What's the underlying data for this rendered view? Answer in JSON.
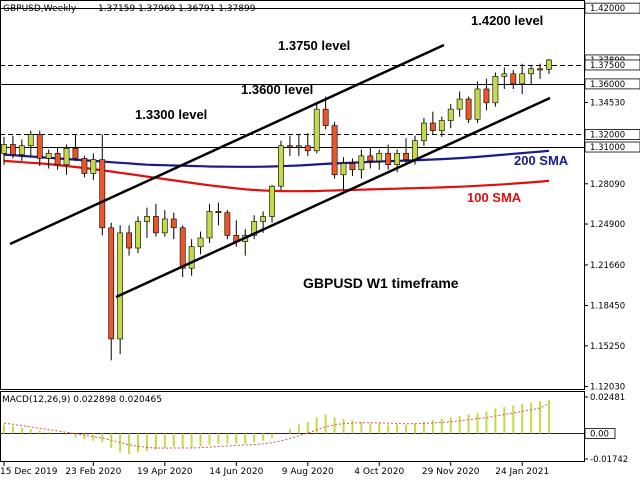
{
  "header": {
    "symbol": "GBPUSD,Weekly",
    "ohlc": "1.37159 1.37969 1.36791 1.37899",
    "macd_label": "MACD(12,26,9) 0.022898 0.020465"
  },
  "labels": {
    "level_1420": "1.4200 level",
    "level_1375": "1.3750 level",
    "level_1360": "1.3600 level",
    "level_1330": "1.3300 level",
    "sma200": "200 SMA",
    "sma100": "100 SMA",
    "timeframe": "GBPUSD W1 timeframe"
  },
  "colors": {
    "bull": "#c6d94a",
    "bear": "#e8562a",
    "sma200": "#1a1a8c",
    "sma100": "#e01010",
    "macd_hist": "#c6d94a",
    "macd_signal": "#e05050"
  },
  "chart_data": {
    "type": "candlestick",
    "timeframe": "W1",
    "ylim": [
      1.1215,
      1.4225
    ],
    "y_ticks": [
      "1.42000",
      "1.37899",
      "1.37500",
      "1.36000",
      "1.34530",
      "1.32000",
      "1.31000",
      "1.28090",
      "1.24900",
      "1.21660",
      "1.18450",
      "1.15250",
      "1.12030"
    ],
    "x_ticks": [
      "15 Dec 2019",
      "23 Feb 2020",
      "19 Apr 2020",
      "14 Jun 2020",
      "9 Aug 2020",
      "4 Oct 2020",
      "29 Nov 2020",
      "24 Jan 2021"
    ],
    "hlines": [
      {
        "value": 1.42,
        "style": "solid"
      },
      {
        "value": 1.375,
        "style": "dashed"
      },
      {
        "value": 1.36,
        "style": "solid"
      },
      {
        "value": 1.32,
        "style": "dashed"
      },
      {
        "value": 1.31,
        "style": "solid"
      }
    ],
    "candles": [
      {
        "o": 1.305,
        "h": 1.318,
        "l": 1.296,
        "c": 1.312
      },
      {
        "o": 1.312,
        "h": 1.319,
        "l": 1.301,
        "c": 1.304
      },
      {
        "o": 1.304,
        "h": 1.316,
        "l": 1.299,
        "c": 1.311
      },
      {
        "o": 1.311,
        "h": 1.323,
        "l": 1.303,
        "c": 1.32
      },
      {
        "o": 1.32,
        "h": 1.323,
        "l": 1.295,
        "c": 1.301
      },
      {
        "o": 1.301,
        "h": 1.308,
        "l": 1.293,
        "c": 1.305
      },
      {
        "o": 1.305,
        "h": 1.31,
        "l": 1.292,
        "c": 1.296
      },
      {
        "o": 1.296,
        "h": 1.312,
        "l": 1.288,
        "c": 1.309
      },
      {
        "o": 1.309,
        "h": 1.32,
        "l": 1.299,
        "c": 1.301
      },
      {
        "o": 1.301,
        "h": 1.303,
        "l": 1.286,
        "c": 1.289
      },
      {
        "o": 1.289,
        "h": 1.305,
        "l": 1.284,
        "c": 1.3
      },
      {
        "o": 1.3,
        "h": 1.32,
        "l": 1.24,
        "c": 1.246
      },
      {
        "o": 1.246,
        "h": 1.25,
        "l": 1.141,
        "c": 1.158
      },
      {
        "o": 1.158,
        "h": 1.248,
        "l": 1.146,
        "c": 1.242
      },
      {
        "o": 1.242,
        "h": 1.248,
        "l": 1.224,
        "c": 1.23
      },
      {
        "o": 1.23,
        "h": 1.255,
        "l": 1.226,
        "c": 1.251
      },
      {
        "o": 1.251,
        "h": 1.262,
        "l": 1.238,
        "c": 1.255
      },
      {
        "o": 1.255,
        "h": 1.265,
        "l": 1.239,
        "c": 1.242
      },
      {
        "o": 1.242,
        "h": 1.26,
        "l": 1.239,
        "c": 1.253
      },
      {
        "o": 1.253,
        "h": 1.258,
        "l": 1.237,
        "c": 1.246
      },
      {
        "o": 1.246,
        "h": 1.248,
        "l": 1.207,
        "c": 1.214
      },
      {
        "o": 1.214,
        "h": 1.237,
        "l": 1.208,
        "c": 1.231
      },
      {
        "o": 1.231,
        "h": 1.243,
        "l": 1.225,
        "c": 1.238
      },
      {
        "o": 1.238,
        "h": 1.265,
        "l": 1.234,
        "c": 1.259
      },
      {
        "o": 1.259,
        "h": 1.266,
        "l": 1.248,
        "c": 1.258
      },
      {
        "o": 1.258,
        "h": 1.26,
        "l": 1.237,
        "c": 1.24
      },
      {
        "o": 1.24,
        "h": 1.252,
        "l": 1.231,
        "c": 1.235
      },
      {
        "o": 1.235,
        "h": 1.245,
        "l": 1.224,
        "c": 1.24
      },
      {
        "o": 1.24,
        "h": 1.256,
        "l": 1.237,
        "c": 1.251
      },
      {
        "o": 1.251,
        "h": 1.259,
        "l": 1.242,
        "c": 1.255
      },
      {
        "o": 1.255,
        "h": 1.28,
        "l": 1.25,
        "c": 1.279
      },
      {
        "o": 1.279,
        "h": 1.315,
        "l": 1.276,
        "c": 1.311
      },
      {
        "o": 1.311,
        "h": 1.319,
        "l": 1.303,
        "c": 1.31
      },
      {
        "o": 1.31,
        "h": 1.32,
        "l": 1.303,
        "c": 1.311
      },
      {
        "o": 1.311,
        "h": 1.321,
        "l": 1.303,
        "c": 1.307
      },
      {
        "o": 1.307,
        "h": 1.345,
        "l": 1.305,
        "c": 1.34
      },
      {
        "o": 1.34,
        "h": 1.35,
        "l": 1.324,
        "c": 1.327
      },
      {
        "o": 1.327,
        "h": 1.33,
        "l": 1.285,
        "c": 1.288
      },
      {
        "o": 1.288,
        "h": 1.302,
        "l": 1.276,
        "c": 1.297
      },
      {
        "o": 1.297,
        "h": 1.301,
        "l": 1.287,
        "c": 1.292
      },
      {
        "o": 1.292,
        "h": 1.308,
        "l": 1.285,
        "c": 1.303
      },
      {
        "o": 1.303,
        "h": 1.31,
        "l": 1.293,
        "c": 1.299
      },
      {
        "o": 1.299,
        "h": 1.308,
        "l": 1.292,
        "c": 1.305
      },
      {
        "o": 1.305,
        "h": 1.312,
        "l": 1.292,
        "c": 1.296
      },
      {
        "o": 1.296,
        "h": 1.308,
        "l": 1.29,
        "c": 1.305
      },
      {
        "o": 1.305,
        "h": 1.317,
        "l": 1.296,
        "c": 1.3
      },
      {
        "o": 1.3,
        "h": 1.319,
        "l": 1.296,
        "c": 1.315
      },
      {
        "o": 1.315,
        "h": 1.333,
        "l": 1.311,
        "c": 1.329
      },
      {
        "o": 1.329,
        "h": 1.338,
        "l": 1.32,
        "c": 1.323
      },
      {
        "o": 1.323,
        "h": 1.334,
        "l": 1.318,
        "c": 1.331
      },
      {
        "o": 1.331,
        "h": 1.344,
        "l": 1.325,
        "c": 1.34
      },
      {
        "o": 1.34,
        "h": 1.354,
        "l": 1.334,
        "c": 1.348
      },
      {
        "o": 1.348,
        "h": 1.35,
        "l": 1.329,
        "c": 1.332
      },
      {
        "o": 1.332,
        "h": 1.362,
        "l": 1.329,
        "c": 1.356
      },
      {
        "o": 1.356,
        "h": 1.364,
        "l": 1.339,
        "c": 1.345
      },
      {
        "o": 1.345,
        "h": 1.369,
        "l": 1.342,
        "c": 1.366
      },
      {
        "o": 1.366,
        "h": 1.373,
        "l": 1.356,
        "c": 1.368
      },
      {
        "o": 1.368,
        "h": 1.371,
        "l": 1.356,
        "c": 1.36
      },
      {
        "o": 1.36,
        "h": 1.376,
        "l": 1.352,
        "c": 1.368
      },
      {
        "o": 1.368,
        "h": 1.374,
        "l": 1.36,
        "c": 1.372
      },
      {
        "o": 1.372,
        "h": 1.376,
        "l": 1.364,
        "c": 1.371
      },
      {
        "o": 1.3716,
        "h": 1.3797,
        "l": 1.3679,
        "c": 1.379
      }
    ],
    "sma200": [
      1.304,
      1.3035,
      1.303,
      1.3025,
      1.302,
      1.3015,
      1.301,
      1.3005,
      1.3,
      1.2995,
      1.299,
      1.2985,
      1.298,
      1.2975,
      1.297,
      1.2965,
      1.296,
      1.2958,
      1.2956,
      1.2954,
      1.2952,
      1.295,
      1.2948,
      1.2946,
      1.2945,
      1.2944,
      1.2943,
      1.2943,
      1.2943,
      1.2944,
      1.2946,
      1.2948,
      1.2951,
      1.2954,
      1.2958,
      1.2962,
      1.2966,
      1.297,
      1.2973,
      1.2976,
      1.2979,
      1.2982,
      1.2985,
      1.2988,
      1.299,
      1.2992,
      1.2995,
      1.2998,
      1.3001,
      1.3004,
      1.3008,
      1.3012,
      1.3017,
      1.3022,
      1.3028,
      1.3034,
      1.304,
      1.3046,
      1.3052,
      1.3058,
      1.3064,
      1.307
    ],
    "sma100": [
      1.299,
      1.2985,
      1.298,
      1.2975,
      1.297,
      1.2965,
      1.2958,
      1.295,
      1.2942,
      1.2934,
      1.2925,
      1.2916,
      1.2906,
      1.2896,
      1.2886,
      1.2876,
      1.2866,
      1.2856,
      1.2846,
      1.2836,
      1.2826,
      1.2816,
      1.2806,
      1.2797,
      1.2788,
      1.278,
      1.2772,
      1.2765,
      1.276,
      1.2756,
      1.2753,
      1.2751,
      1.275,
      1.275,
      1.2751,
      1.2752,
      1.2754,
      1.2756,
      1.2758,
      1.276,
      1.2762,
      1.2764,
      1.2766,
      1.2768,
      1.277,
      1.2772,
      1.2774,
      1.2776,
      1.2778,
      1.278,
      1.2783,
      1.2786,
      1.2789,
      1.2793,
      1.2797,
      1.2801,
      1.2805,
      1.281,
      1.2815,
      1.282,
      1.2826,
      1.2832
    ],
    "macd": {
      "ylim": [
        -0.01742,
        0.02481
      ],
      "y_ticks": [
        "0.02481",
        "0.00",
        "-0.01742"
      ],
      "hist": [
        0.006,
        0.005,
        0.004,
        0.003,
        0.002,
        0.001,
        0.0,
        -0.001,
        -0.003,
        -0.004,
        -0.005,
        -0.006,
        -0.01,
        -0.013,
        -0.014,
        -0.013,
        -0.012,
        -0.011,
        -0.01,
        -0.009,
        -0.01,
        -0.01,
        -0.009,
        -0.008,
        -0.007,
        -0.007,
        -0.007,
        -0.007,
        -0.006,
        -0.005,
        -0.003,
        0.0,
        0.003,
        0.006,
        0.008,
        0.011,
        0.013,
        0.011,
        0.01,
        0.009,
        0.008,
        0.007,
        0.007,
        0.006,
        0.006,
        0.006,
        0.007,
        0.008,
        0.009,
        0.01,
        0.011,
        0.012,
        0.013,
        0.014,
        0.015,
        0.017,
        0.018,
        0.019,
        0.02,
        0.021,
        0.022,
        0.0229
      ],
      "signal": [
        0.007,
        0.0062,
        0.0053,
        0.0044,
        0.0035,
        0.0026,
        0.0017,
        0.0008,
        -0.0002,
        -0.0012,
        -0.0022,
        -0.0032,
        -0.0046,
        -0.0062,
        -0.0077,
        -0.0088,
        -0.0095,
        -0.0099,
        -0.01,
        -0.0099,
        -0.0099,
        -0.0099,
        -0.0097,
        -0.0094,
        -0.0089,
        -0.0085,
        -0.0082,
        -0.0079,
        -0.0076,
        -0.0071,
        -0.0063,
        -0.0051,
        -0.0035,
        -0.0016,
        0.0003,
        0.0024,
        0.0045,
        0.0058,
        0.0066,
        0.0071,
        0.0073,
        0.0073,
        0.0072,
        0.007,
        0.0068,
        0.0066,
        0.0066,
        0.0068,
        0.0071,
        0.0075,
        0.008,
        0.0086,
        0.0093,
        0.01,
        0.0108,
        0.0118,
        0.0128,
        0.0139,
        0.015,
        0.0161,
        0.0173,
        0.0205
      ]
    }
  }
}
